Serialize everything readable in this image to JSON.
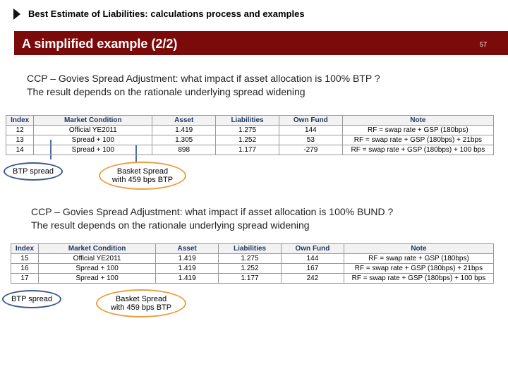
{
  "header": {
    "title": "Best Estimate of Liabilities: calculations process and examples",
    "banner": "A simplified example (2/2)",
    "page": "57"
  },
  "sections": [
    {
      "intro": [
        "CCP – Govies Spread Adjustment: what impact if asset allocation is 100% BTP ?",
        "The result depends on the rationale underlying spread widening"
      ],
      "table": {
        "columns": [
          "Index",
          "Market Condition",
          "Asset",
          "Liabilities",
          "Own Fund",
          "Note"
        ],
        "rows": [
          [
            "12",
            "Official YE2011",
            "1.419",
            "1.275",
            "144",
            "RF = swap rate + GSP (180bps)"
          ],
          [
            "13",
            "Spread + 100",
            "1.305",
            "1.252",
            "53",
            "RF = swap rate + GSP (180bps) + 21bps"
          ],
          [
            "14",
            "Spread + 100",
            "898",
            "1.177",
            "-279",
            "RF = swap rate + GSP (180bps) + 100 bps"
          ]
        ]
      },
      "callouts": [
        {
          "lines": [
            "BTP spread"
          ]
        },
        {
          "lines": [
            "Basket Spread",
            "with 459 bps BTP"
          ]
        }
      ]
    },
    {
      "intro": [
        "CCP – Govies Spread Adjustment: what impact if asset allocation is 100% BUND ?",
        "The result depends on the rationale underlying spread widening"
      ],
      "table": {
        "columns": [
          "Index",
          "Market Condition",
          "Asset",
          "Liabilities",
          "Own Fund",
          "Note"
        ],
        "rows": [
          [
            "15",
            "Official YE2011",
            "1.419",
            "1.275",
            "144",
            "RF = swap rate + GSP (180bps)"
          ],
          [
            "16",
            "Spread + 100",
            "1.419",
            "1.252",
            "167",
            "RF = swap rate + GSP (180bps) + 21bps"
          ],
          [
            "17",
            "Spread + 100",
            "1.419",
            "1.177",
            "242",
            "RF = swap rate + GSP (180bps) + 100 bps"
          ]
        ]
      },
      "callouts": [
        {
          "lines": [
            "BTP spread"
          ]
        },
        {
          "lines": [
            "Basket Spread",
            "with 459 bps BTP"
          ]
        }
      ]
    }
  ]
}
